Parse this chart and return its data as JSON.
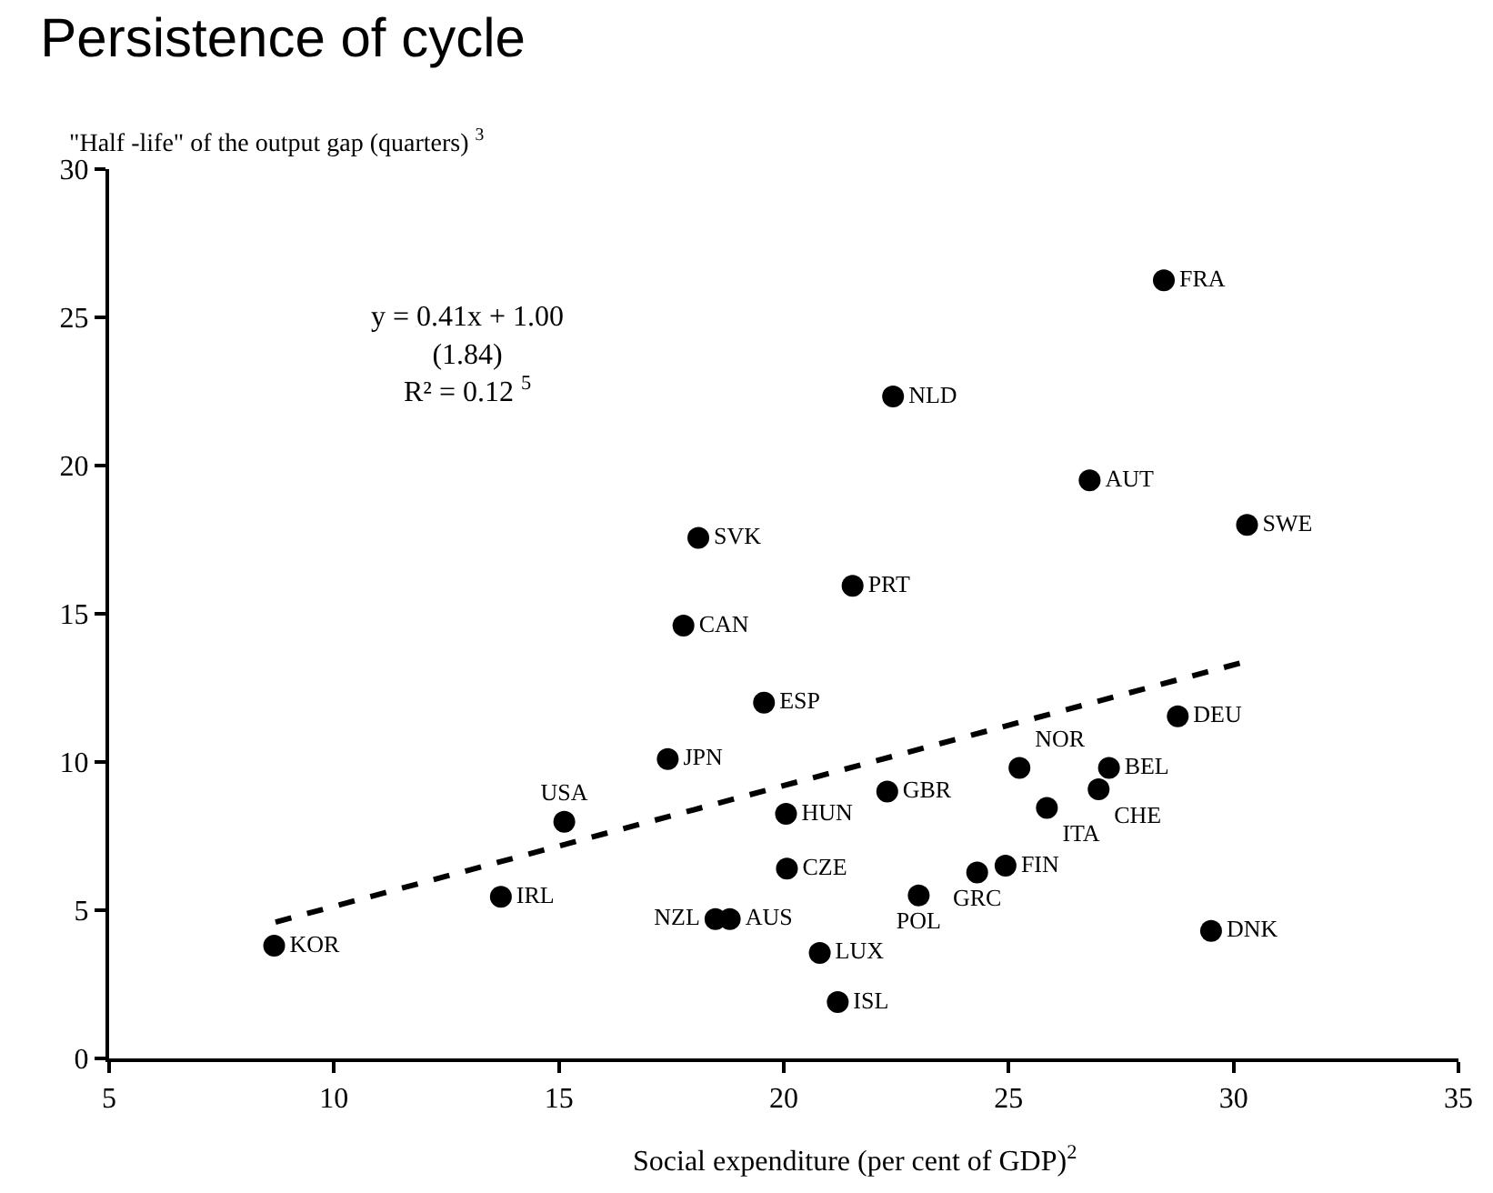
{
  "chart_data": {
    "type": "scatter",
    "title": "Persistence of cycle",
    "ylabel": "\"Half -life\" of the output gap (quarters) $^{3}$",
    "xlabel": "Social expenditure (per cent of GDP)$^{2}$",
    "annotations": [
      "y = 0.41x + 1.00\n(1.84)\nR² = 0.12 $^{5}$"
    ],
    "series": [
      {
        "color": "#000000",
        "marker": "circle",
        "x": [
          8.67,
          13.71,
          15.12,
          17.42,
          18.48,
          18.8,
          17.77,
          18.1,
          19.56,
          20.05,
          20.07,
          22.3,
          20.8,
          21.2,
          23.0,
          24.3,
          24.93,
          25.24,
          25.85,
          27.0,
          27.23,
          28.76,
          29.5,
          28.45,
          22.43,
          26.8,
          30.3,
          21.53
        ],
        "values": [
          3.8,
          5.45,
          7.98,
          10.1,
          4.7,
          4.7,
          14.6,
          17.56,
          12.0,
          8.25,
          6.4,
          9.0,
          3.56,
          1.9,
          5.5,
          6.27,
          6.5,
          9.8,
          8.45,
          9.08,
          9.8,
          11.54,
          4.3,
          26.25,
          22.33,
          19.5,
          18.0,
          15.94
        ],
        "value_labels": [
          "KOR",
          "IRL",
          "USA",
          "JPN",
          "NZL",
          "AUS",
          "CAN",
          "SVK",
          "ESP",
          "HUN",
          "CZE",
          "GBR",
          "LUX",
          "ISL",
          "POL",
          "GRC",
          "FIN",
          "NOR",
          "ITA",
          "CHE",
          "BEL",
          "DEU",
          "DNK",
          "FRA",
          "NLD",
          "AUT",
          "SWE",
          "PRT"
        ]
      },
      {
        "type": "line",
        "color": "#000000",
        "line_style": "dashed",
        "x": [
          8.7,
          30.3
        ],
        "values": [
          4.6,
          13.4
        ]
      }
    ],
    "xlim": [
      5,
      35
    ],
    "xticks": [
      5,
      10,
      15,
      20,
      25,
      30,
      35
    ],
    "ylim": [
      0,
      30
    ],
    "yticks": [
      0,
      5,
      10,
      15,
      20,
      25,
      30
    ]
  }
}
